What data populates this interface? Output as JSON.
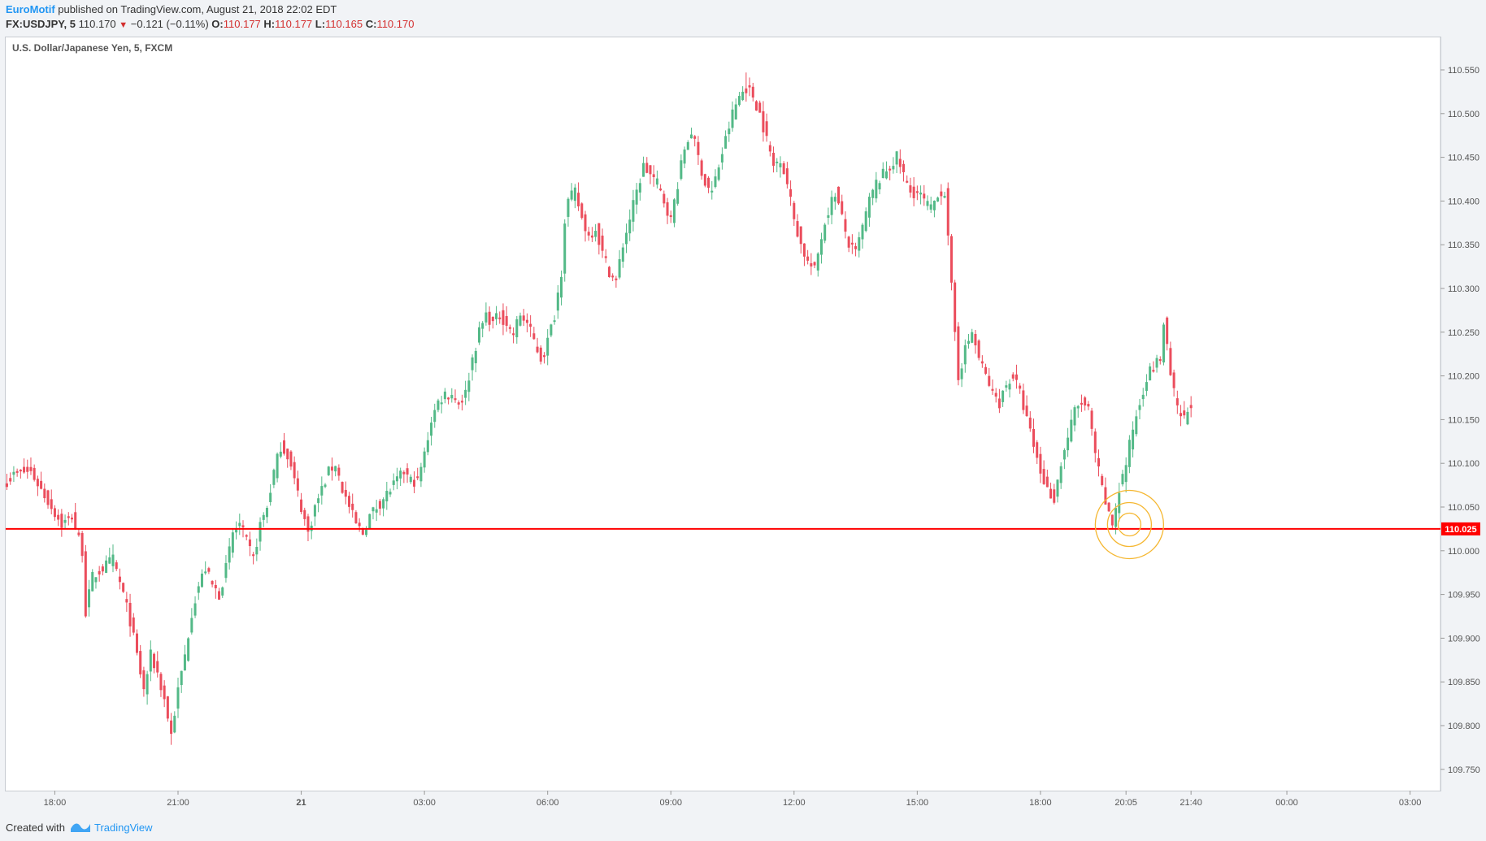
{
  "header": {
    "author": "EuroMotif",
    "published_text": "published on TradingView.com, August 21, 2018 22:02 EDT",
    "symbol": "FX:USDJPY, 5",
    "last": "110.170",
    "change": "−0.121 (−0.11%)",
    "open_label": "O:",
    "open": "110.177",
    "high_label": "H:",
    "high": "110.177",
    "low_label": "L:",
    "low": "110.165",
    "close_label": "C:",
    "close": "110.170"
  },
  "footer": {
    "created_with": "Created with",
    "brand": "TradingView"
  },
  "colors": {
    "up": "#53b987",
    "down": "#eb4d5c",
    "level": "#ff0000",
    "circle": "#f5b731"
  },
  "chart_data": {
    "type": "candlestick",
    "title": "U.S. Dollar/Japanese Yen, 5, FXCM",
    "ylim": [
      109.72,
      110.57
    ],
    "y_ticks": [
      "110.550",
      "110.500",
      "110.450",
      "110.400",
      "110.350",
      "110.300",
      "110.250",
      "110.200",
      "110.150",
      "110.100",
      "110.050",
      "110.000",
      "109.950",
      "109.900",
      "109.850",
      "109.800",
      "109.750"
    ],
    "x_ticks": [
      {
        "label": "18:00",
        "i": 14
      },
      {
        "label": "21:00",
        "i": 50
      },
      {
        "label": "21",
        "i": 86
      },
      {
        "label": "03:00",
        "i": 122
      },
      {
        "label": "06:00",
        "i": 158
      },
      {
        "label": "09:00",
        "i": 194
      },
      {
        "label": "12:00",
        "i": 230
      },
      {
        "label": "15:00",
        "i": 266
      },
      {
        "label": "18:00",
        "i": 302
      },
      {
        "label": "20:05",
        "i": 327
      },
      {
        "label": "21:40",
        "i": 346
      },
      {
        "label": "00:00",
        "i": 374
      },
      {
        "label": "03:00",
        "i": 410
      }
    ],
    "horizontal_line": {
      "value": 110.025,
      "label": "110.025"
    },
    "highlight_circle": {
      "i": 328,
      "value": 110.03
    },
    "keypoints": [
      [
        0,
        110.08
      ],
      [
        3,
        110.09
      ],
      [
        7,
        110.09
      ],
      [
        10,
        110.07
      ],
      [
        13,
        110.05
      ],
      [
        16,
        110.03
      ],
      [
        19,
        110.04
      ],
      [
        22,
        110.0
      ],
      [
        23,
        109.93
      ],
      [
        25,
        109.97
      ],
      [
        28,
        109.98
      ],
      [
        31,
        109.99
      ],
      [
        34,
        109.95
      ],
      [
        36,
        109.92
      ],
      [
        38,
        109.88
      ],
      [
        40,
        109.84
      ],
      [
        42,
        109.88
      ],
      [
        44,
        109.86
      ],
      [
        46,
        109.83
      ],
      [
        48,
        109.79
      ],
      [
        50,
        109.84
      ],
      [
        52,
        109.88
      ],
      [
        54,
        109.93
      ],
      [
        56,
        109.96
      ],
      [
        58,
        109.98
      ],
      [
        60,
        109.96
      ],
      [
        62,
        109.95
      ],
      [
        64,
        109.98
      ],
      [
        66,
        110.02
      ],
      [
        68,
        110.03
      ],
      [
        70,
        110.01
      ],
      [
        72,
        109.99
      ],
      [
        74,
        110.03
      ],
      [
        76,
        110.05
      ],
      [
        78,
        110.09
      ],
      [
        80,
        110.12
      ],
      [
        82,
        110.11
      ],
      [
        84,
        110.08
      ],
      [
        86,
        110.05
      ],
      [
        88,
        110.02
      ],
      [
        90,
        110.05
      ],
      [
        92,
        110.07
      ],
      [
        94,
        110.09
      ],
      [
        96,
        110.1
      ],
      [
        98,
        110.07
      ],
      [
        100,
        110.05
      ],
      [
        102,
        110.03
      ],
      [
        104,
        110.02
      ],
      [
        106,
        110.04
      ],
      [
        108,
        110.05
      ],
      [
        110,
        110.06
      ],
      [
        112,
        110.07
      ],
      [
        114,
        110.08
      ],
      [
        116,
        110.09
      ],
      [
        118,
        110.08
      ],
      [
        120,
        110.08
      ],
      [
        122,
        110.11
      ],
      [
        124,
        110.15
      ],
      [
        126,
        110.17
      ],
      [
        128,
        110.18
      ],
      [
        130,
        110.18
      ],
      [
        132,
        110.17
      ],
      [
        134,
        110.18
      ],
      [
        136,
        110.22
      ],
      [
        138,
        110.25
      ],
      [
        140,
        110.27
      ],
      [
        142,
        110.26
      ],
      [
        144,
        110.27
      ],
      [
        146,
        110.26
      ],
      [
        148,
        110.25
      ],
      [
        150,
        110.27
      ],
      [
        152,
        110.26
      ],
      [
        154,
        110.24
      ],
      [
        156,
        110.22
      ],
      [
        158,
        110.24
      ],
      [
        160,
        110.27
      ],
      [
        162,
        110.32
      ],
      [
        163,
        110.38
      ],
      [
        164,
        110.4
      ],
      [
        166,
        110.41
      ],
      [
        168,
        110.38
      ],
      [
        170,
        110.36
      ],
      [
        172,
        110.37
      ],
      [
        174,
        110.34
      ],
      [
        176,
        110.32
      ],
      [
        178,
        110.31
      ],
      [
        180,
        110.35
      ],
      [
        182,
        110.38
      ],
      [
        184,
        110.41
      ],
      [
        186,
        110.44
      ],
      [
        188,
        110.43
      ],
      [
        190,
        110.42
      ],
      [
        192,
        110.4
      ],
      [
        194,
        110.38
      ],
      [
        196,
        110.42
      ],
      [
        198,
        110.46
      ],
      [
        200,
        110.48
      ],
      [
        202,
        110.45
      ],
      [
        204,
        110.42
      ],
      [
        206,
        110.41
      ],
      [
        208,
        110.44
      ],
      [
        210,
        110.47
      ],
      [
        212,
        110.5
      ],
      [
        214,
        110.52
      ],
      [
        216,
        110.53
      ],
      [
        218,
        110.52
      ],
      [
        220,
        110.5
      ],
      [
        222,
        110.47
      ],
      [
        224,
        110.44
      ],
      [
        226,
        110.45
      ],
      [
        228,
        110.42
      ],
      [
        230,
        110.38
      ],
      [
        232,
        110.35
      ],
      [
        234,
        110.33
      ],
      [
        236,
        110.32
      ],
      [
        238,
        110.36
      ],
      [
        240,
        110.39
      ],
      [
        242,
        110.41
      ],
      [
        244,
        110.38
      ],
      [
        246,
        110.35
      ],
      [
        248,
        110.34
      ],
      [
        250,
        110.37
      ],
      [
        252,
        110.4
      ],
      [
        254,
        110.42
      ],
      [
        256,
        110.43
      ],
      [
        258,
        110.44
      ],
      [
        260,
        110.45
      ],
      [
        262,
        110.43
      ],
      [
        264,
        110.41
      ],
      [
        266,
        110.41
      ],
      [
        268,
        110.4
      ],
      [
        270,
        110.39
      ],
      [
        272,
        110.41
      ],
      [
        274,
        110.41
      ],
      [
        276,
        110.3
      ],
      [
        278,
        110.2
      ],
      [
        280,
        110.23
      ],
      [
        282,
        110.25
      ],
      [
        284,
        110.22
      ],
      [
        286,
        110.2
      ],
      [
        288,
        110.18
      ],
      [
        290,
        110.17
      ],
      [
        292,
        110.19
      ],
      [
        294,
        110.2
      ],
      [
        296,
        110.18
      ],
      [
        298,
        110.15
      ],
      [
        300,
        110.12
      ],
      [
        302,
        110.09
      ],
      [
        304,
        110.07
      ],
      [
        306,
        110.06
      ],
      [
        308,
        110.1
      ],
      [
        310,
        110.13
      ],
      [
        312,
        110.16
      ],
      [
        314,
        110.17
      ],
      [
        316,
        110.16
      ],
      [
        318,
        110.11
      ],
      [
        320,
        110.07
      ],
      [
        322,
        110.04
      ],
      [
        323,
        110.03
      ],
      [
        325,
        110.07
      ],
      [
        327,
        110.1
      ],
      [
        329,
        110.14
      ],
      [
        331,
        110.17
      ],
      [
        333,
        110.2
      ],
      [
        335,
        110.21
      ],
      [
        337,
        110.22
      ],
      [
        338,
        110.26
      ],
      [
        340,
        110.2
      ],
      [
        342,
        110.16
      ],
      [
        344,
        110.15
      ],
      [
        346,
        110.17
      ]
    ]
  }
}
